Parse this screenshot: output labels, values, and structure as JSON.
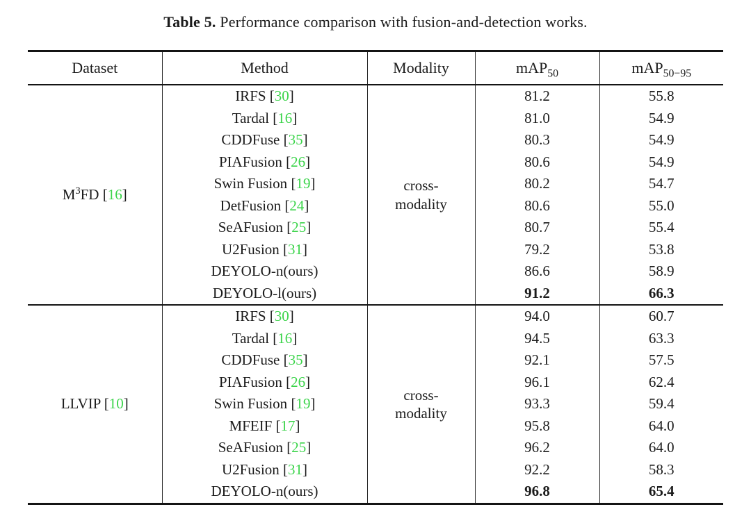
{
  "colors": {
    "citation_green": "#3bd44a",
    "text": "#1b1b1b"
  },
  "caption": {
    "label": "Table 5.",
    "text": "Performance comparison with fusion-and-detection works."
  },
  "citation_format": {
    "open": "[",
    "close": "]"
  },
  "table": {
    "headers": [
      {
        "text": "Dataset"
      },
      {
        "text": "Method"
      },
      {
        "text": "Modality"
      },
      {
        "text": "mAP",
        "sub": "50"
      },
      {
        "text": "mAP",
        "sub": "50−95"
      }
    ],
    "groups": [
      {
        "dataset": {
          "pre": "M",
          "sup": "3",
          "post": "FD",
          "cite": "16"
        },
        "modality_lines": [
          "cross-",
          "modality"
        ],
        "rows": [
          {
            "method": "IRFS",
            "cite": "30",
            "map50": "81.2",
            "map50_95": "55.8",
            "bold": false
          },
          {
            "method": "Tardal",
            "cite": "16",
            "map50": "81.0",
            "map50_95": "54.9",
            "bold": false
          },
          {
            "method": "CDDFuse",
            "cite": "35",
            "map50": "80.3",
            "map50_95": "54.9",
            "bold": false
          },
          {
            "method": "PIAFusion",
            "cite": "26",
            "map50": "80.6",
            "map50_95": "54.9",
            "bold": false
          },
          {
            "method": "Swin Fusion",
            "cite": "19",
            "map50": "80.2",
            "map50_95": "54.7",
            "bold": false
          },
          {
            "method": "DetFusion",
            "cite": "24",
            "map50": "80.6",
            "map50_95": "55.0",
            "bold": false
          },
          {
            "method": "SeAFusion",
            "cite": "25",
            "map50": "80.7",
            "map50_95": "55.4",
            "bold": false
          },
          {
            "method": "U2Fusion",
            "cite": "31",
            "map50": "79.2",
            "map50_95": "53.8",
            "bold": false
          },
          {
            "method": "DEYOLO-n(ours)",
            "cite": null,
            "map50": "86.6",
            "map50_95": "58.9",
            "bold": false
          },
          {
            "method": "DEYOLO-l(ours)",
            "cite": null,
            "map50": "91.2",
            "map50_95": "66.3",
            "bold": true
          }
        ]
      },
      {
        "dataset": {
          "pre": "LLVIP",
          "sup": "",
          "post": "",
          "cite": "10"
        },
        "modality_lines": [
          "cross-",
          "modality"
        ],
        "rows": [
          {
            "method": "IRFS",
            "cite": "30",
            "map50": "94.0",
            "map50_95": "60.7",
            "bold": false
          },
          {
            "method": "Tardal",
            "cite": "16",
            "map50": "94.5",
            "map50_95": "63.3",
            "bold": false
          },
          {
            "method": "CDDFuse",
            "cite": "35",
            "map50": "92.1",
            "map50_95": "57.5",
            "bold": false
          },
          {
            "method": "PIAFusion",
            "cite": "26",
            "map50": "96.1",
            "map50_95": "62.4",
            "bold": false
          },
          {
            "method": "Swin Fusion",
            "cite": "19",
            "map50": "93.3",
            "map50_95": "59.4",
            "bold": false
          },
          {
            "method": "MFEIF",
            "cite": "17",
            "map50": "95.8",
            "map50_95": "64.0",
            "bold": false
          },
          {
            "method": "SeAFusion",
            "cite": "25",
            "map50": "96.2",
            "map50_95": "64.0",
            "bold": false
          },
          {
            "method": "U2Fusion",
            "cite": "31",
            "map50": "92.2",
            "map50_95": "58.3",
            "bold": false
          },
          {
            "method": "DEYOLO-n(ours)",
            "cite": null,
            "map50": "96.8",
            "map50_95": "65.4",
            "bold": true
          }
        ]
      }
    ]
  }
}
